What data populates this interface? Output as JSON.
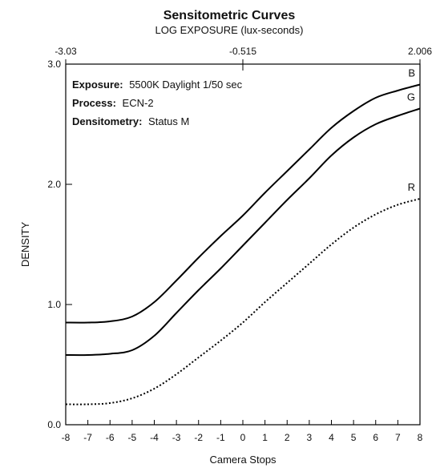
{
  "chart_data": {
    "type": "line",
    "title": "Sensitometric Curves",
    "subtitle": "LOG EXPOSURE (lux-seconds)",
    "xlabel": "Camera Stops",
    "ylabel": "DENSITY",
    "xlim": [
      -8,
      8
    ],
    "ylim": [
      0,
      3
    ],
    "x_ticks": [
      "-8",
      "-7",
      "-6",
      "-5",
      "-4",
      "-3",
      "-2",
      "-1",
      "0",
      "1",
      "2",
      "3",
      "4",
      "5",
      "6",
      "7",
      "8"
    ],
    "y_ticks": [
      "0.0",
      "1.0",
      "2.0",
      "3.0"
    ],
    "top_axis": {
      "label": "LOG EXPOSURE (lux-seconds)",
      "ticks": [
        {
          "stop": -8,
          "label": "-3.03"
        },
        {
          "stop": 0,
          "label": "-0.515"
        },
        {
          "stop": 8,
          "label": "2.006"
        }
      ]
    },
    "annotations": [
      {
        "label": "Exposure:",
        "value": "5500K Daylight 1/50 sec"
      },
      {
        "label": "Process:",
        "value": "ECN-2"
      },
      {
        "label": "Densitometry:",
        "value": "Status M"
      }
    ],
    "grid": false,
    "series": [
      {
        "name": "B",
        "color": "#000000",
        "style": "solid",
        "points": [
          [
            -8,
            0.85
          ],
          [
            -7,
            0.85
          ],
          [
            -6,
            0.86
          ],
          [
            -5,
            0.9
          ],
          [
            -4,
            1.02
          ],
          [
            -3,
            1.2
          ],
          [
            -2,
            1.39
          ],
          [
            -1,
            1.57
          ],
          [
            0,
            1.74
          ],
          [
            1,
            1.93
          ],
          [
            2,
            2.11
          ],
          [
            3,
            2.29
          ],
          [
            4,
            2.47
          ],
          [
            5,
            2.61
          ],
          [
            6,
            2.72
          ],
          [
            7,
            2.78
          ],
          [
            8,
            2.83
          ]
        ]
      },
      {
        "name": "G",
        "color": "#000000",
        "style": "solid",
        "points": [
          [
            -8,
            0.58
          ],
          [
            -7,
            0.58
          ],
          [
            -6,
            0.59
          ],
          [
            -5,
            0.62
          ],
          [
            -4,
            0.74
          ],
          [
            -3,
            0.93
          ],
          [
            -2,
            1.12
          ],
          [
            -1,
            1.3
          ],
          [
            0,
            1.49
          ],
          [
            1,
            1.68
          ],
          [
            2,
            1.87
          ],
          [
            3,
            2.05
          ],
          [
            4,
            2.24
          ],
          [
            5,
            2.39
          ],
          [
            6,
            2.5
          ],
          [
            7,
            2.57
          ],
          [
            8,
            2.63
          ]
        ]
      },
      {
        "name": "R",
        "color": "#000000",
        "style": "dotted",
        "points": [
          [
            -8,
            0.17
          ],
          [
            -7,
            0.17
          ],
          [
            -6,
            0.18
          ],
          [
            -5,
            0.22
          ],
          [
            -4,
            0.3
          ],
          [
            -3,
            0.42
          ],
          [
            -2,
            0.56
          ],
          [
            -1,
            0.7
          ],
          [
            0,
            0.85
          ],
          [
            1,
            1.02
          ],
          [
            2,
            1.18
          ],
          [
            3,
            1.34
          ],
          [
            4,
            1.5
          ],
          [
            5,
            1.64
          ],
          [
            6,
            1.75
          ],
          [
            7,
            1.83
          ],
          [
            8,
            1.88
          ]
        ]
      }
    ]
  }
}
